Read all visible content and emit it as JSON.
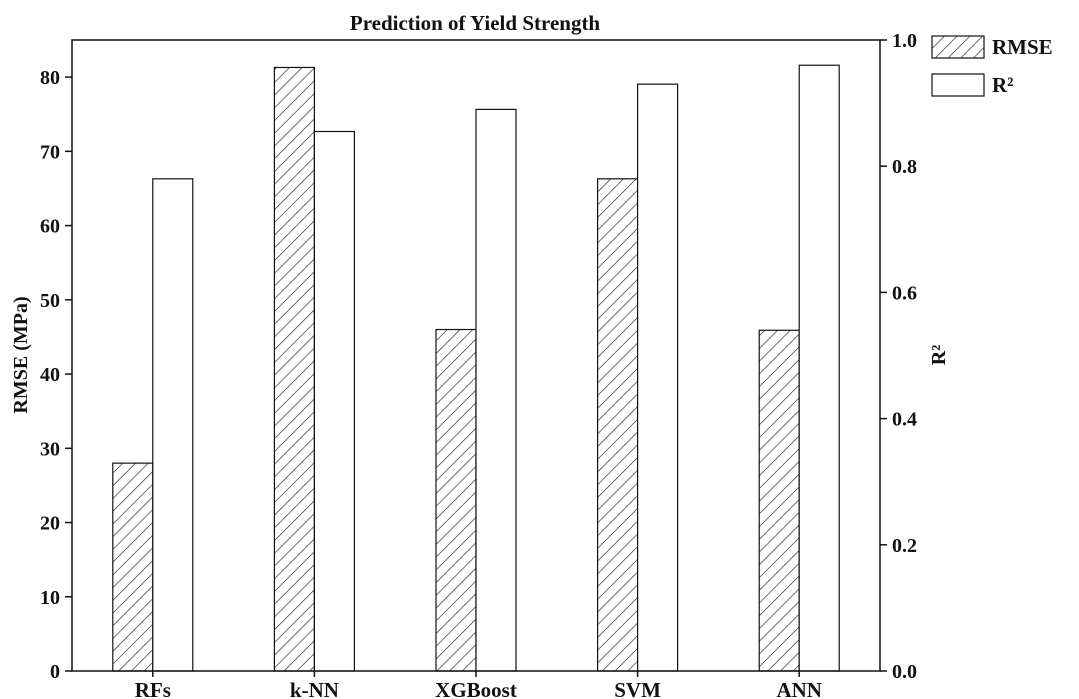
{
  "chart_data": {
    "type": "bar",
    "title": "Prediction of Yield Strength",
    "categories": [
      "RFs",
      "k-NN",
      "XGBoost",
      "SVM",
      "ANN"
    ],
    "series": [
      {
        "name": "RMSE",
        "axis": "left",
        "pattern": "hatch",
        "values": [
          28.0,
          81.3,
          46.0,
          66.3,
          45.9
        ]
      },
      {
        "name": "R²",
        "axis": "right",
        "pattern": "none",
        "values": [
          0.78,
          0.855,
          0.89,
          0.93,
          0.96
        ]
      }
    ],
    "ylabel": "RMSE (MPa)",
    "y2label": "R²",
    "ylim": [
      0,
      85
    ],
    "y2lim": [
      0,
      1.0
    ],
    "yticks": [
      0,
      10,
      20,
      30,
      40,
      50,
      60,
      70,
      80
    ],
    "y2ticks": [
      "0.0",
      "0.2",
      "0.4",
      "0.6",
      "0.8",
      "1.0"
    ],
    "grid": false,
    "legend_position": "outside-top-right"
  }
}
